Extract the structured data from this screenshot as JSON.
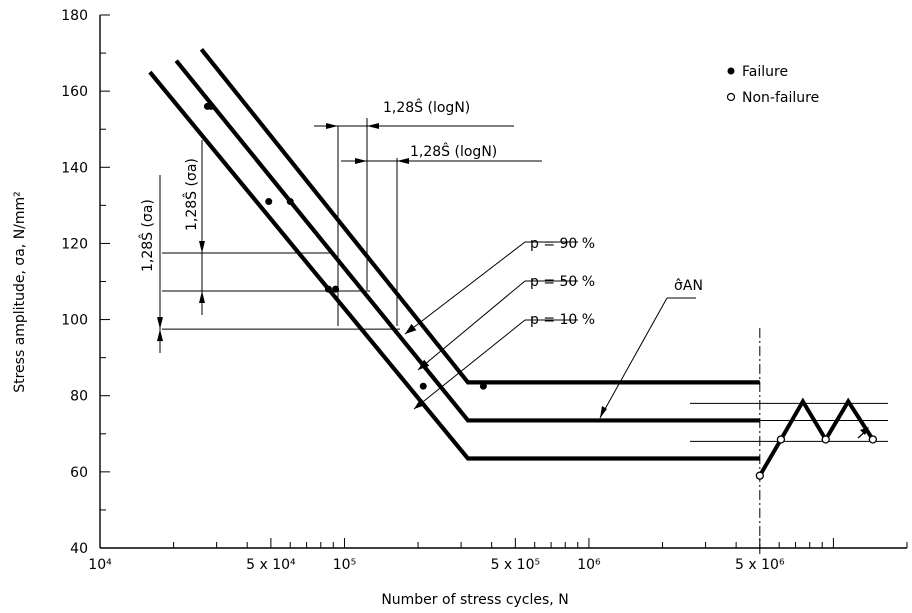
{
  "chart_data": {
    "type": "line",
    "xscale": "log",
    "xlim": [
      10000,
      20000000
    ],
    "ylim": [
      40,
      180
    ],
    "xlabel": "Number of stress cycles, N",
    "ylabel": "Stress amplitude, σa, N/mm²",
    "y_ticks": [
      {
        "value": 40,
        "label": "40"
      },
      {
        "value": 60,
        "label": "60"
      },
      {
        "value": 80,
        "label": "80"
      },
      {
        "value": 100,
        "label": "100"
      },
      {
        "value": 120,
        "label": "120"
      },
      {
        "value": 140,
        "label": "140"
      },
      {
        "value": 160,
        "label": "160"
      },
      {
        "value": 180,
        "label": "180"
      }
    ],
    "x_ticks": [
      {
        "value": 10000,
        "label": "10⁴"
      },
      {
        "value": 50000,
        "label": "5 x 10⁴"
      },
      {
        "value": 100000,
        "label": "10⁵"
      },
      {
        "value": 500000,
        "label": "5 x 10⁵"
      },
      {
        "value": 1000000,
        "label": "10⁶"
      },
      {
        "value": 5000000,
        "label": "5 x 10⁶"
      }
    ],
    "series": [
      {
        "name": "p = 90 %",
        "x": [
          26000,
          320000,
          5000000
        ],
        "y": [
          171,
          83.5,
          83.5
        ]
      },
      {
        "name": "p = 50 %",
        "x": [
          20500,
          320000,
          5000000
        ],
        "y": [
          168,
          73.5,
          73.5
        ]
      },
      {
        "name": "p = 10 %",
        "x": [
          16000,
          320000,
          5000000
        ],
        "y": [
          165,
          63.5,
          63.5
        ]
      }
    ],
    "failure_points": [
      {
        "x": 27500,
        "y": 156
      },
      {
        "x": 28500,
        "y": 156
      },
      {
        "x": 49000,
        "y": 131
      },
      {
        "x": 60000,
        "y": 131
      },
      {
        "x": 86000,
        "y": 108
      },
      {
        "x": 92000,
        "y": 108
      },
      {
        "x": 210000,
        "y": 82.5
      },
      {
        "x": 370000,
        "y": 82.5
      }
    ],
    "staircase": {
      "x": [
        5000000,
        6100000,
        7500000,
        9300000,
        11500000,
        14500000
      ],
      "y": [
        59,
        68.5,
        78.5,
        68.5,
        78.5,
        68.5
      ],
      "open_points": [
        {
          "x": 5000000,
          "y": 59
        },
        {
          "x": 6100000,
          "y": 68.5
        },
        {
          "x": 9300000,
          "y": 68.5
        },
        {
          "x": 14500000,
          "y": 68.5
        }
      ],
      "levels": [
        68,
        73.5,
        78
      ]
    },
    "legend": {
      "position": "top-right",
      "entries": [
        {
          "label": "Failure",
          "marker": "filled-circle"
        },
        {
          "label": "Non-failure",
          "marker": "open-circle"
        }
      ]
    },
    "annotations": {
      "logN_a": "1,28Ŝ (logN)",
      "logN_b": "1,28Ŝ (logN)",
      "sigma_a": "1,28Ŝ (σa)",
      "sigma_b": "1,28Ŝ (σa)",
      "p90": "p = 90 %",
      "p50": "p = 50 %",
      "p10": "p = 10 %",
      "sigma_AN": "σ̂AN"
    },
    "grid": false,
    "colors": {
      "line": "#000000",
      "background": "#ffffff"
    }
  }
}
